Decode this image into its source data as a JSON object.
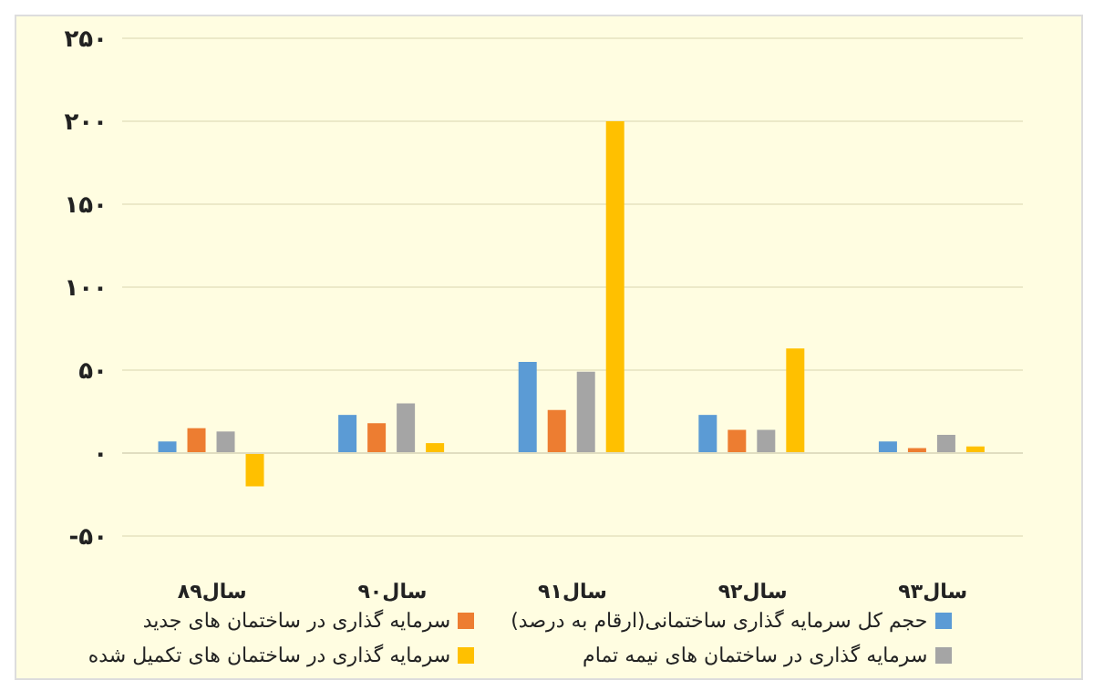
{
  "chart_data": {
    "type": "bar",
    "categories": [
      "سال۸۹",
      "سال۹۰",
      "سال۹۱",
      "سال۹۲",
      "سال۹۳"
    ],
    "series": [
      {
        "name": "حجم کل سرمایه گذاری ساختمانی(ارقام به درصد)",
        "color": "#5b9bd5",
        "values": [
          7,
          23,
          55,
          23,
          7
        ]
      },
      {
        "name": "سرمایه گذاری در ساختمان های جدید",
        "color": "#ed7d31",
        "values": [
          15,
          18,
          26,
          14,
          3
        ]
      },
      {
        "name": "سرمایه گذاری در ساختمان های نیمه تمام",
        "color": "#a5a5a5",
        "values": [
          13,
          30,
          49,
          14,
          11
        ]
      },
      {
        "name": "سرمایه گذاری در ساختمان های تکمیل شده",
        "color": "#ffc000",
        "values": [
          -20,
          6,
          200,
          63,
          4
        ]
      }
    ],
    "ylim": [
      -50,
      250
    ],
    "yticks": [
      {
        "value": -50,
        "label": "-۵۰"
      },
      {
        "value": 0,
        "label": "۰"
      },
      {
        "value": 50,
        "label": "۵۰"
      },
      {
        "value": 100,
        "label": "۱۰۰"
      },
      {
        "value": 150,
        "label": "۱۵۰"
      },
      {
        "value": 200,
        "label": "۲۰۰"
      },
      {
        "value": 250,
        "label": "۲۵۰"
      }
    ],
    "grid": "y",
    "legend": "bottom"
  }
}
